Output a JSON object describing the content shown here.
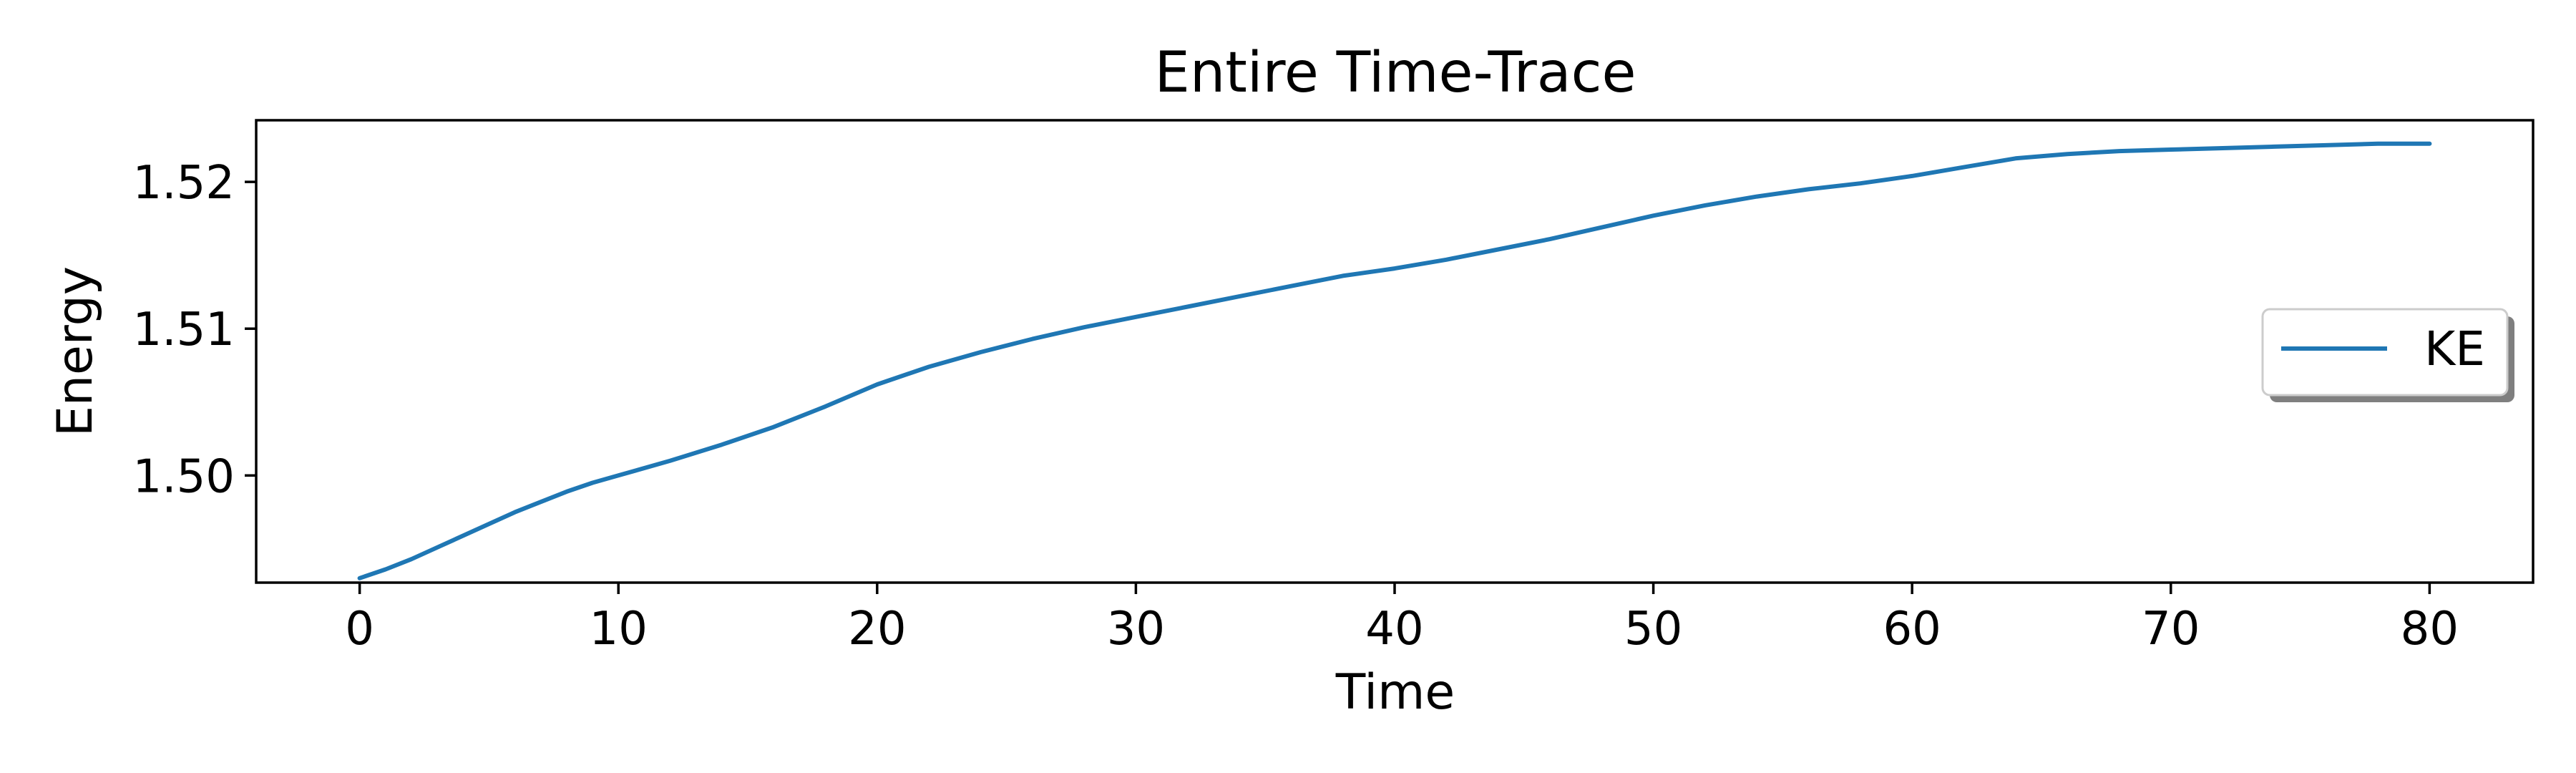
{
  "chart_data": {
    "type": "line",
    "title": "Entire Time-Trace",
    "xlabel": "Time",
    "ylabel": "Energy",
    "xlim": [
      -4,
      84
    ],
    "ylim": [
      1.4927,
      1.5242
    ],
    "xticks": [
      0,
      10,
      20,
      30,
      40,
      50,
      60,
      70,
      80
    ],
    "yticks": [
      1.5,
      1.51,
      1.52
    ],
    "ytick_labels": [
      "1.50",
      "1.51",
      "1.52"
    ],
    "grid": false,
    "legend_position": "center-right",
    "series": [
      {
        "name": "KE",
        "color": "#1f77b4",
        "x": [
          0,
          1,
          2,
          3,
          4,
          5,
          6,
          7,
          8,
          9,
          10,
          12,
          14,
          16,
          18,
          20,
          22,
          24,
          26,
          28,
          30,
          32,
          34,
          36,
          38,
          40,
          42,
          44,
          46,
          48,
          50,
          52,
          54,
          56,
          58,
          60,
          62,
          64,
          66,
          68,
          70,
          72,
          74,
          76,
          78,
          80
        ],
        "y": [
          1.493,
          1.4936,
          1.4943,
          1.4951,
          1.4959,
          1.4967,
          1.4975,
          1.4982,
          1.4989,
          1.4995,
          1.5,
          1.501,
          1.5021,
          1.5033,
          1.5047,
          1.5062,
          1.5074,
          1.5084,
          1.5093,
          1.5101,
          1.5108,
          1.5115,
          1.5122,
          1.5129,
          1.5136,
          1.5141,
          1.5147,
          1.5154,
          1.5161,
          1.5169,
          1.5177,
          1.5184,
          1.519,
          1.5195,
          1.5199,
          1.5204,
          1.521,
          1.5216,
          1.5219,
          1.5221,
          1.5222,
          1.5223,
          1.5224,
          1.5225,
          1.5226,
          1.5226
        ]
      }
    ]
  }
}
